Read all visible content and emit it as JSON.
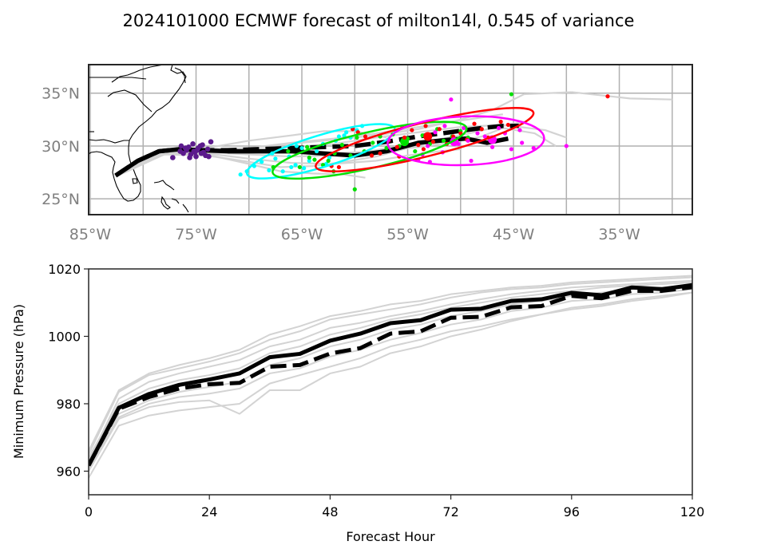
{
  "title": "2024101000 ECMWF forecast of milton14l, 0.545 of variance",
  "colors": {
    "member": "#d3d3d3",
    "main": "#000000",
    "grid": "#b0b0b0",
    "tick_gray": "#808080",
    "initial_points": "#5b1a8c",
    "cyan": "#00ffff",
    "green": "#00e000",
    "red": "#ff0000",
    "magenta": "#ff00ff"
  },
  "chart_data": [
    {
      "type": "scatter",
      "name": "track-map",
      "title": "",
      "xlabel": "",
      "ylabel": "",
      "xlim": [
        -85.15,
        -28.1
      ],
      "ylim": [
        23.5,
        37.7
      ],
      "grid": true,
      "x_ticks": [
        -85,
        -75,
        -65,
        -55,
        -45,
        -35
      ],
      "x_tick_labels": [
        "85°W",
        "75°W",
        "65°W",
        "55°W",
        "45°W",
        "35°W"
      ],
      "x_grid": [
        -85,
        -80,
        -75,
        -70,
        -65,
        -60,
        -55,
        -50,
        -45,
        -40,
        -35,
        -30
      ],
      "y_ticks": [
        25,
        30,
        35
      ],
      "y_tick_labels": [
        "25°N",
        "30°N",
        "35°N"
      ],
      "solid_track": {
        "lon": [
          -82.6,
          -80.5,
          -78.5,
          -76.5,
          -74.5,
          -72,
          -69,
          -66,
          -63,
          -60,
          -57,
          -54,
          -51,
          -49.5,
          -47.5,
          -45.5
        ],
        "lat": [
          27.2,
          28.6,
          29.5,
          29.7,
          29.6,
          29.5,
          29.5,
          29.5,
          29.3,
          29.1,
          29.5,
          30.3,
          30.6,
          30.7,
          30.3,
          30.7
        ]
      },
      "dashed_track": {
        "lon": [
          -82.6,
          -80.5,
          -78.5,
          -76.5,
          -74.5,
          -72,
          -69,
          -66,
          -63,
          -60,
          -57,
          -54,
          -51,
          -48,
          -46,
          -44.5
        ],
        "lat": [
          27.2,
          28.6,
          29.5,
          29.7,
          29.6,
          29.6,
          29.7,
          29.8,
          29.9,
          30.0,
          30.4,
          30.9,
          31.3,
          31.7,
          31.9,
          31.9
        ]
      },
      "member_tracks": [
        {
          "lon": [
            -82.6,
            -78,
            -74,
            -70,
            -66,
            -62,
            -58,
            -54,
            -50,
            -46
          ],
          "lat": [
            27.3,
            29.4,
            29.7,
            29.8,
            30.3,
            30.7,
            31.2,
            31.8,
            32.4,
            33.0
          ]
        },
        {
          "lon": [
            -82.6,
            -78,
            -74,
            -70,
            -66,
            -62,
            -58,
            -55,
            -52,
            -50
          ],
          "lat": [
            27.1,
            29.2,
            29.3,
            28.8,
            28.4,
            28.3,
            28.6,
            29.1,
            29.5,
            29.7
          ]
        },
        {
          "lon": [
            -82.6,
            -78,
            -74,
            -70,
            -67,
            -64,
            -61,
            -59
          ],
          "lat": [
            27.2,
            29.3,
            29.2,
            28.3,
            27.6,
            27.4,
            27.3,
            27.0
          ]
        },
        {
          "lon": [
            -82.6,
            -78,
            -74,
            -70,
            -66,
            -62,
            -58,
            -54,
            -50,
            -46,
            -42,
            -40
          ],
          "lat": [
            27.2,
            29.4,
            29.6,
            29.6,
            29.9,
            30.2,
            30.8,
            31.3,
            31.8,
            32.0,
            31.5,
            30.8
          ]
        },
        {
          "lon": [
            -82.6,
            -78,
            -74,
            -70,
            -66,
            -62,
            -58,
            -54,
            -50,
            -47,
            -44,
            -39.5
          ],
          "lat": [
            27.2,
            29.3,
            29.5,
            29.8,
            30.2,
            30.6,
            31.0,
            31.6,
            32.5,
            33.4,
            34.9,
            35.1
          ]
        },
        {
          "lon": [
            -39.5,
            -34,
            -30
          ],
          "lat": [
            35.1,
            34.5,
            34.4
          ]
        },
        {
          "lon": [
            -82.6,
            -78,
            -74,
            -70,
            -66,
            -63,
            -60,
            -57
          ],
          "lat": [
            27.3,
            29.5,
            29.8,
            30.5,
            31.0,
            31.4,
            31.4,
            30.8
          ]
        },
        {
          "lon": [
            -82.6,
            -78,
            -74,
            -70,
            -67,
            -64,
            -61,
            -58,
            -55,
            -52
          ],
          "lat": [
            27.2,
            29.2,
            29.1,
            28.5,
            28.0,
            28.1,
            28.5,
            29.0,
            29.8,
            30.6
          ]
        },
        {
          "lon": [
            -82.6,
            -78,
            -74,
            -70,
            -66,
            -62,
            -58,
            -54,
            -51,
            -48,
            -46,
            -43,
            -41
          ],
          "lat": [
            27.2,
            29.4,
            29.6,
            29.5,
            29.4,
            29.3,
            29.5,
            29.9,
            30.3,
            30.9,
            31.7,
            31.2,
            30.0
          ]
        },
        {
          "lon": [
            -82.6,
            -78,
            -74,
            -70,
            -66,
            -62,
            -58,
            -54,
            -50,
            -47,
            -44
          ],
          "lat": [
            27.2,
            29.3,
            29.4,
            29.2,
            29.0,
            29.1,
            29.6,
            30.3,
            31.0,
            31.7,
            32.3
          ]
        }
      ],
      "initial_points": {
        "color": "initial_points",
        "lon": [
          -75.2,
          -75.5,
          -74.8,
          -74.3,
          -75.9,
          -76.2,
          -74.6,
          -75.0,
          -73.9,
          -75.7,
          -74.1,
          -76.5,
          -75.3,
          -74.9,
          -73.6,
          -75.6,
          -74.4,
          -76.0,
          -73.8,
          -75.1,
          -76.4,
          -77.2,
          -74.5
        ],
        "lat": [
          29.5,
          29.2,
          29.8,
          29.4,
          29.6,
          29.3,
          30.0,
          29.0,
          29.7,
          29.9,
          29.1,
          29.5,
          30.2,
          29.6,
          30.4,
          28.9,
          30.1,
          29.8,
          29.0,
          29.4,
          30.0,
          28.9,
          29.3
        ]
      },
      "forecast_clusters": [
        {
          "color": "cyan",
          "ellipse": {
            "center_lon": -63.2,
            "center_lat": 29.5,
            "semi_major_deg": 7.3,
            "semi_minor_deg": 1.5,
            "angle_deg": 17
          },
          "mean_point": null,
          "lon": [
            -70.8,
            -70.2,
            -69.5,
            -68.8,
            -68.1,
            -67.5,
            -66.8,
            -66.2,
            -65.6,
            -65.0,
            -64.3,
            -63.6,
            -63.0,
            -62.4,
            -61.8,
            -61.0,
            -60.4,
            -59.8,
            -59.3,
            -66.0,
            -64.8,
            -62.7,
            -61.5,
            -60.8,
            -67.8,
            -65.5
          ],
          "lat": [
            27.3,
            27.6,
            28.1,
            28.5,
            27.7,
            28.8,
            27.6,
            29.0,
            28.2,
            29.8,
            28.6,
            29.5,
            30.2,
            28.9,
            30.5,
            31.0,
            30.8,
            31.5,
            31.9,
            28.0,
            27.9,
            28.3,
            30.9,
            31.3,
            29.3,
            30.0
          ]
        },
        {
          "color": "green",
          "ellipse": {
            "center_lon": -58.6,
            "center_lat": 29.6,
            "semi_major_deg": 9.4,
            "semi_minor_deg": 1.7,
            "angle_deg": 13
          },
          "mean_point": {
            "lon": -55.3,
            "lat": 30.4
          },
          "lon": [
            -67.7,
            -66.3,
            -65.2,
            -64.5,
            -63.8,
            -63.0,
            -62.5,
            -61.9,
            -61.2,
            -60.4,
            -59.8,
            -59.1,
            -58.3,
            -57.6,
            -57.0,
            -56.4,
            -55.8,
            -55.0,
            -54.3,
            -53.6,
            -52.9,
            -52.2,
            -51.6,
            -50.8,
            -50.0,
            -49.3,
            -60.0,
            -45.2,
            -62.0,
            -64.3
          ],
          "lat": [
            28.0,
            29.5,
            28.0,
            29.9,
            28.7,
            28.2,
            28.6,
            29.3,
            30.1,
            29.1,
            30.8,
            29.5,
            30.3,
            30.9,
            29.8,
            31.1,
            30.0,
            30.7,
            29.5,
            31.0,
            30.2,
            31.6,
            30.5,
            30.9,
            31.4,
            30.8,
            25.9,
            34.9,
            27.6,
            28.9
          ]
        },
        {
          "color": "red",
          "ellipse": {
            "center_lon": -53.4,
            "center_lat": 30.6,
            "semi_major_deg": 10.6,
            "semi_minor_deg": 1.6,
            "angle_deg": 14
          },
          "mean_point": {
            "lon": -53.1,
            "lat": 30.9
          },
          "lon": [
            -60.2,
            -59.7,
            -59.0,
            -58.4,
            -57.6,
            -56.8,
            -56.0,
            -55.3,
            -54.6,
            -54.0,
            -53.3,
            -52.6,
            -52.0,
            -51.3,
            -50.7,
            -50.0,
            -49.4,
            -48.7,
            -48.0,
            -47.4,
            -46.2,
            -45.5,
            -61.5,
            -62.2,
            -36.1,
            -53.5,
            -55.8
          ],
          "lat": [
            31.6,
            31.3,
            30.9,
            29.1,
            29.3,
            30.5,
            29.9,
            30.8,
            31.5,
            30.1,
            31.9,
            30.4,
            31.6,
            30.2,
            30.9,
            31.2,
            30.6,
            32.1,
            31.6,
            30.8,
            32.3,
            32.0,
            28.0,
            28.1,
            34.7,
            29.7,
            29.0
          ]
        },
        {
          "color": "magenta",
          "ellipse": {
            "center_lon": -49.5,
            "center_lat": 30.5,
            "semi_major_deg": 7.4,
            "semi_minor_deg": 2.3,
            "angle_deg": 2
          },
          "mean_point": {
            "lon": -47.0,
            "lat": 30.6
          },
          "mean_point_2": {
            "lon": -50.6,
            "lat": 30.4
          },
          "lon": [
            -56.8,
            -55.5,
            -54.0,
            -53.1,
            -52.4,
            -51.7,
            -50.9,
            -50.2,
            -49.7,
            -49.0,
            -48.4,
            -47.7,
            -47.0,
            -46.4,
            -45.8,
            -45.2,
            -44.4,
            -44.2,
            -43.1,
            -40.0,
            -49.3,
            -52.9,
            -51.5,
            -53.6
          ],
          "lat": [
            30.6,
            31.8,
            28.7,
            30.0,
            31.3,
            29.4,
            34.4,
            30.2,
            31.7,
            28.6,
            31.2,
            30.9,
            29.9,
            31.7,
            31.2,
            29.7,
            31.5,
            30.3,
            29.8,
            30.0,
            30.5,
            28.5,
            31.9,
            29.2
          ]
        }
      ]
    },
    {
      "type": "line",
      "name": "pressure-chart",
      "title": "",
      "xlabel": "Forecast Hour",
      "ylabel": "Minimum Pressure (hPa)",
      "xlim": [
        0,
        120
      ],
      "ylim": [
        953,
        1020
      ],
      "grid": false,
      "x_ticks": [
        0,
        24,
        48,
        72,
        96,
        120
      ],
      "y_ticks": [
        960,
        980,
        1000,
        1020
      ],
      "x": [
        0,
        6,
        12,
        18,
        24,
        30,
        36,
        42,
        48,
        54,
        60,
        66,
        72,
        78,
        84,
        90,
        96,
        102,
        108,
        114,
        120
      ],
      "series": [
        {
          "name": "solid",
          "style": "solid",
          "values": [
            961.7,
            978.8,
            982.9,
            985.6,
            987.2,
            989.0,
            993.8,
            994.8,
            998.7,
            1000.8,
            1003.9,
            1004.8,
            1007.9,
            1008.2,
            1010.5,
            1011.0,
            1012.9,
            1012.2,
            1014.5,
            1014.0,
            1015.2
          ]
        },
        {
          "name": "dashed",
          "style": "dashed",
          "values": [
            961.7,
            978.5,
            982.0,
            984.5,
            985.8,
            986.2,
            991.0,
            991.5,
            994.9,
            996.5,
            1000.8,
            1001.5,
            1005.5,
            1005.8,
            1008.6,
            1009.0,
            1012.0,
            1011.3,
            1013.5,
            1013.5,
            1014.6
          ]
        },
        {
          "name": "member",
          "style": "gray",
          "values": [
            965.0,
            983.5,
            988.5,
            990.5,
            992.5,
            995.0,
            999.0,
            1001.5,
            1005.0,
            1006.5,
            1008.0,
            1009.5,
            1011.5,
            1013.0,
            1014.0,
            1014.5,
            1015.5,
            1016.0,
            1016.5,
            1017.0,
            1017.5
          ]
        },
        {
          "name": "member",
          "style": "gray",
          "values": [
            963.0,
            981.5,
            986.5,
            989.0,
            991.0,
            993.0,
            997.0,
            999.0,
            1002.5,
            1004.0,
            1006.0,
            1007.5,
            1009.5,
            1011.0,
            1012.5,
            1013.5,
            1014.5,
            1015.0,
            1015.5,
            1016.0,
            1016.5
          ]
        },
        {
          "name": "member",
          "style": "gray",
          "values": [
            958.0,
            973.5,
            976.5,
            978.0,
            979.0,
            980.0,
            986.0,
            988.5,
            991.0,
            993.5,
            997.0,
            999.0,
            1001.5,
            1003.0,
            1005.0,
            1006.5,
            1008.5,
            1009.5,
            1011.0,
            1012.0,
            1013.0
          ]
        },
        {
          "name": "member",
          "style": "gray",
          "values": [
            960.0,
            975.5,
            979.0,
            980.5,
            981.0,
            977.0,
            984.0,
            984.0,
            989.0,
            991.0,
            995.0,
            997.0,
            1000.0,
            1002.0,
            1004.5,
            1006.5,
            1008.0,
            1009.0,
            1010.5,
            1011.5,
            1013.0
          ]
        },
        {
          "name": "member",
          "style": "gray",
          "values": [
            962.0,
            977.0,
            981.0,
            983.5,
            985.0,
            986.5,
            991.5,
            993.5,
            997.0,
            999.0,
            1002.0,
            1003.5,
            1006.0,
            1007.5,
            1009.5,
            1010.5,
            1012.0,
            1013.0,
            1014.0,
            1014.5,
            1015.0
          ]
        },
        {
          "name": "member",
          "style": "gray",
          "values": [
            964.0,
            980.0,
            984.5,
            987.0,
            988.5,
            990.5,
            995.0,
            997.0,
            1000.5,
            1002.5,
            1005.0,
            1006.5,
            1008.5,
            1010.0,
            1011.5,
            1012.5,
            1013.5,
            1014.5,
            1015.0,
            1015.5,
            1016.0
          ]
        },
        {
          "name": "member",
          "style": "gray",
          "values": [
            961.0,
            976.0,
            980.0,
            982.0,
            983.0,
            984.5,
            989.0,
            990.5,
            994.0,
            996.0,
            999.0,
            1001.0,
            1003.5,
            1005.0,
            1007.5,
            1008.5,
            1010.5,
            1011.0,
            1012.5,
            1013.0,
            1014.0
          ]
        },
        {
          "name": "member",
          "style": "gray",
          "values": [
            966.0,
            984.0,
            989.0,
            991.5,
            993.5,
            996.0,
            1000.5,
            1003.0,
            1006.0,
            1007.5,
            1009.5,
            1010.5,
            1012.5,
            1013.5,
            1014.5,
            1015.0,
            1016.0,
            1016.5,
            1017.0,
            1017.5,
            1018.0
          ]
        }
      ]
    }
  ]
}
